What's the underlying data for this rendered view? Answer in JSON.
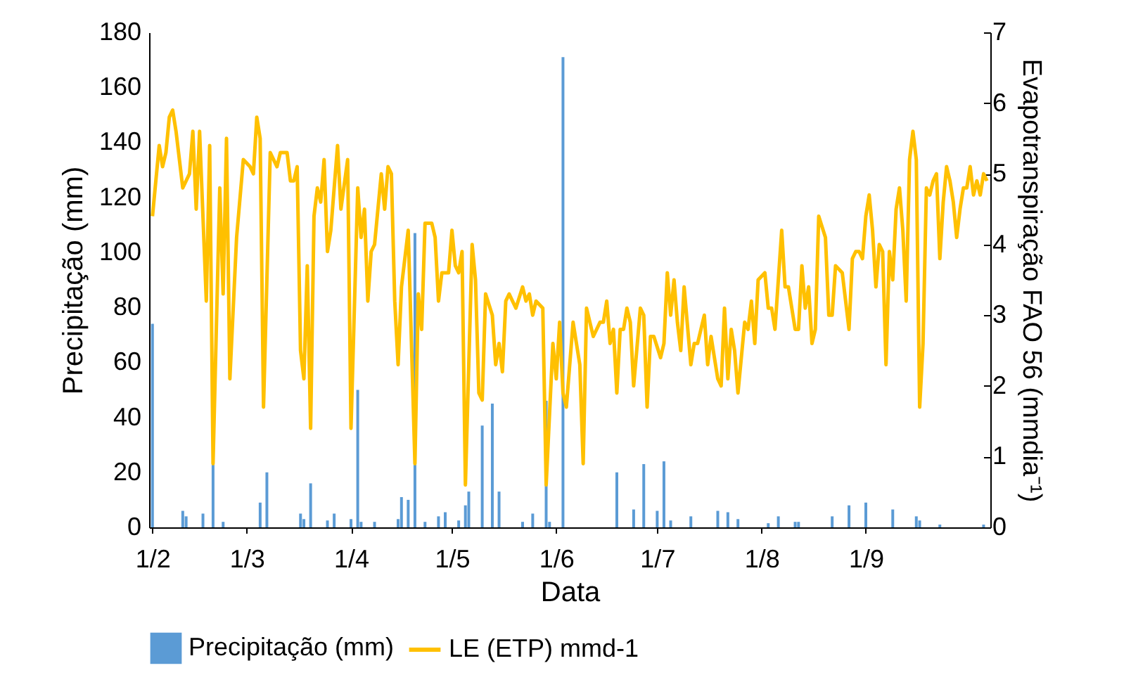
{
  "chart_data": {
    "type": "bar",
    "xlabel": "Data",
    "ylabel": "Precipitação (mm)",
    "y2label": "Evapotranspiração FAO 56 (mmdia⁻¹)",
    "xlim": [
      "--01-31",
      "--10-08"
    ],
    "xticks": [
      {
        "value": "--02-01",
        "label": "1/2"
      },
      {
        "value": "--03-01",
        "label": "1/3"
      },
      {
        "value": "--04-01",
        "label": "1/4"
      },
      {
        "value": "--05-01",
        "label": "1/5"
      },
      {
        "value": "--06-01",
        "label": "1/6"
      },
      {
        "value": "--07-01",
        "label": "1/7"
      },
      {
        "value": "--08-01",
        "label": "1/8"
      },
      {
        "value": "--09-01",
        "label": "1/9"
      }
    ],
    "ylim": [
      0,
      180
    ],
    "yticks": [
      0,
      20,
      40,
      60,
      80,
      100,
      120,
      140,
      160,
      180
    ],
    "y2lim": [
      0,
      7
    ],
    "y2ticks": [
      0,
      1,
      2,
      3,
      4,
      5,
      6,
      7
    ],
    "grid": false,
    "legend": "bottom",
    "series": [
      {
        "name": "Precipitação (mm)",
        "color": "#5b9bd5",
        "x": [
          "--02-01",
          "--02-10",
          "--02-11",
          "--02-16",
          "--02-19",
          "--02-22",
          "--03-05",
          "--03-07",
          "--03-17",
          "--03-18",
          "--03-20",
          "--03-25",
          "--03-27",
          "--04-01",
          "--04-03",
          "--04-04",
          "--04-08",
          "--04-15",
          "--04-16",
          "--04-18",
          "--04-20",
          "--04-23",
          "--04-27",
          "--04-29",
          "--05-03",
          "--05-05",
          "--05-06",
          "--05-10",
          "--05-13",
          "--05-15",
          "--05-22",
          "--05-25",
          "--05-29",
          "--05-30",
          "--06-03",
          "--06-19",
          "--06-24",
          "--06-27",
          "--07-01",
          "--07-03",
          "--07-05",
          "--07-11",
          "--07-19",
          "--07-22",
          "--07-25",
          "--08-03",
          "--08-06",
          "--08-11",
          "--08-12",
          "--08-22",
          "--08-27",
          "--09-01",
          "--09-09",
          "--09-16",
          "--09-17",
          "--09-23",
          "--10-06"
        ],
        "values": [
          74,
          6,
          4,
          5,
          24,
          2,
          9,
          20,
          5,
          3,
          16,
          2.5,
          5,
          3,
          50,
          2,
          2,
          3,
          11,
          10,
          107,
          2,
          4,
          5.5,
          2.5,
          8,
          13,
          37,
          45,
          13,
          2,
          5,
          46,
          2,
          171,
          20,
          6.5,
          23,
          6,
          24,
          2.5,
          4,
          6,
          5.5,
          3,
          1.5,
          4,
          2,
          2,
          4,
          8,
          9,
          6.5,
          4,
          2.5,
          1,
          1
        ]
      },
      {
        "name": "LE (ETP) mmd-1",
        "type": "line",
        "axis": "y2",
        "color": "#ffc000",
        "x": [
          "--02-01",
          "--02-03",
          "--02-04",
          "--02-05",
          "--02-06",
          "--02-07",
          "--02-08",
          "--02-10",
          "--02-12",
          "--02-13",
          "--02-14",
          "--02-15",
          "--02-17",
          "--02-18",
          "--02-19",
          "--02-21",
          "--02-22",
          "--02-23",
          "--02-24",
          "--02-26",
          "--02-28",
          "--03-02",
          "--03-03",
          "--03-04",
          "--03-05",
          "--03-06",
          "--03-08",
          "--03-10",
          "--03-11",
          "--03-13",
          "--03-14",
          "--03-15",
          "--03-16",
          "--03-17",
          "--03-18",
          "--03-19",
          "--03-20",
          "--03-21",
          "--03-22",
          "--03-23",
          "--03-24",
          "--03-25",
          "--03-26",
          "--03-28",
          "--03-29",
          "--03-31",
          "--04-01",
          "--04-03",
          "--04-04",
          "--04-05",
          "--04-06",
          "--04-07",
          "--04-08",
          "--04-10",
          "--04-11",
          "--04-12",
          "--04-13",
          "--04-14",
          "--04-15",
          "--04-16",
          "--04-18",
          "--04-20",
          "--04-21",
          "--04-22",
          "--04-23",
          "--04-25",
          "--04-26",
          "--04-27",
          "--04-28",
          "--04-30",
          "--05-01",
          "--05-02",
          "--05-03",
          "--05-04",
          "--05-05",
          "--05-07",
          "--05-08",
          "--05-09",
          "--05-10",
          "--05-11",
          "--05-13",
          "--05-14",
          "--05-15",
          "--05-16",
          "--05-17",
          "--05-18",
          "--05-20",
          "--05-22",
          "--05-23",
          "--05-24",
          "--05-25",
          "--05-26",
          "--05-28",
          "--05-29",
          "--05-31",
          "--06-01",
          "--06-02",
          "--06-03",
          "--06-04",
          "--06-06",
          "--06-08",
          "--06-09",
          "--06-10",
          "--06-12",
          "--06-14",
          "--06-15",
          "--06-16",
          "--06-17",
          "--06-18",
          "--06-19",
          "--06-20",
          "--06-21",
          "--06-22",
          "--06-23",
          "--06-24",
          "--06-26",
          "--06-27",
          "--06-28",
          "--06-29",
          "--06-30",
          "--07-02",
          "--07-03",
          "--07-04",
          "--07-05",
          "--07-06",
          "--07-07",
          "--07-08",
          "--07-09",
          "--07-11",
          "--07-12",
          "--07-13",
          "--07-14",
          "--07-15",
          "--07-16",
          "--07-17",
          "--07-19",
          "--07-20",
          "--07-21",
          "--07-22",
          "--07-23",
          "--07-24",
          "--07-25",
          "--07-27",
          "--07-28",
          "--07-29",
          "--07-30",
          "--07-31",
          "--08-02",
          "--08-03",
          "--08-04",
          "--08-05",
          "--08-06",
          "--08-07",
          "--08-08",
          "--08-09",
          "--08-11",
          "--08-12",
          "--08-13",
          "--08-14",
          "--08-15",
          "--08-16",
          "--08-17",
          "--08-18",
          "--08-20",
          "--08-21",
          "--08-22",
          "--08-23",
          "--08-25",
          "--08-27",
          "--08-28",
          "--08-29",
          "--08-30",
          "--08-31",
          "--09-01",
          "--09-02",
          "--09-03",
          "--09-04",
          "--09-05",
          "--09-06",
          "--09-07",
          "--09-08",
          "--09-09",
          "--09-10",
          "--09-11",
          "--09-12",
          "--09-13",
          "--09-14",
          "--09-15",
          "--09-16",
          "--09-17",
          "--09-18",
          "--09-19",
          "--09-20",
          "--09-21",
          "--09-22",
          "--09-23",
          "--09-24",
          "--09-25",
          "--09-26",
          "--09-27",
          "--09-28",
          "--09-29",
          "--09-30",
          "--10-01",
          "--10-02",
          "--10-03",
          "--10-04",
          "--10-05",
          "--10-06",
          "--10-07"
        ],
        "values": [
          4.4,
          5.4,
          5.1,
          5.3,
          5.8,
          5.9,
          5.6,
          4.8,
          5.0,
          5.6,
          4.5,
          5.6,
          3.2,
          5.4,
          0.9,
          4.8,
          3.3,
          5.5,
          2.1,
          4.1,
          5.2,
          5.1,
          5.0,
          5.8,
          5.5,
          1.7,
          5.3,
          5.1,
          5.3,
          5.3,
          4.9,
          4.9,
          5.1,
          2.5,
          2.1,
          3.7,
          1.4,
          4.4,
          4.8,
          4.6,
          5.2,
          3.9,
          4.2,
          5.4,
          4.5,
          5.2,
          1.4,
          4.8,
          4.1,
          4.5,
          3.2,
          3.9,
          4.0,
          5.0,
          4.5,
          5.1,
          5.0,
          3.2,
          2.3,
          3.4,
          4.2,
          0.9,
          3.3,
          2.8,
          4.3,
          4.3,
          4.1,
          3.2,
          3.6,
          3.6,
          4.2,
          3.7,
          3.6,
          3.9,
          0.6,
          4.0,
          3.5,
          1.9,
          1.8,
          3.3,
          3.0,
          2.3,
          2.6,
          2.2,
          3.2,
          3.3,
          3.1,
          3.4,
          3.2,
          3.3,
          3.0,
          3.2,
          3.1,
          0.6,
          2.6,
          2.1,
          2.9,
          1.9,
          1.7,
          2.9,
          2.3,
          0.9,
          3.1,
          2.7,
          2.9,
          2.9,
          3.2,
          2.6,
          2.8,
          1.9,
          2.8,
          2.8,
          3.1,
          2.9,
          2.0,
          3.1,
          3.0,
          1.7,
          2.7,
          2.7,
          2.4,
          2.6,
          3.6,
          3.0,
          3.5,
          2.9,
          2.5,
          3.4,
          2.3,
          2.6,
          2.6,
          2.8,
          3.0,
          2.3,
          2.7,
          2.1,
          2.0,
          3.1,
          2.1,
          2.8,
          2.5,
          1.9,
          2.9,
          2.8,
          3.2,
          2.6,
          3.5,
          3.6,
          3.1,
          3.1,
          2.8,
          3.5,
          4.2,
          3.4,
          3.4,
          2.8,
          2.8,
          3.7,
          3.1,
          3.4,
          2.6,
          2.8,
          4.4,
          4.1,
          3.0,
          3.0,
          3.7,
          3.6,
          2.8,
          3.8,
          3.9,
          3.9,
          3.8,
          4.4,
          4.7,
          4.2,
          3.4,
          4.0,
          3.9,
          2.3,
          3.9,
          3.5,
          4.5,
          4.8,
          4.2,
          3.2,
          5.2,
          5.6,
          5.2,
          1.7,
          2.6,
          4.8,
          4.7,
          4.9,
          5.0,
          3.8,
          4.6,
          5.1,
          4.9,
          4.6,
          4.1,
          4.5,
          4.8,
          4.8,
          5.1,
          4.7,
          4.9,
          4.7,
          5.0,
          4.9
        ]
      }
    ]
  }
}
